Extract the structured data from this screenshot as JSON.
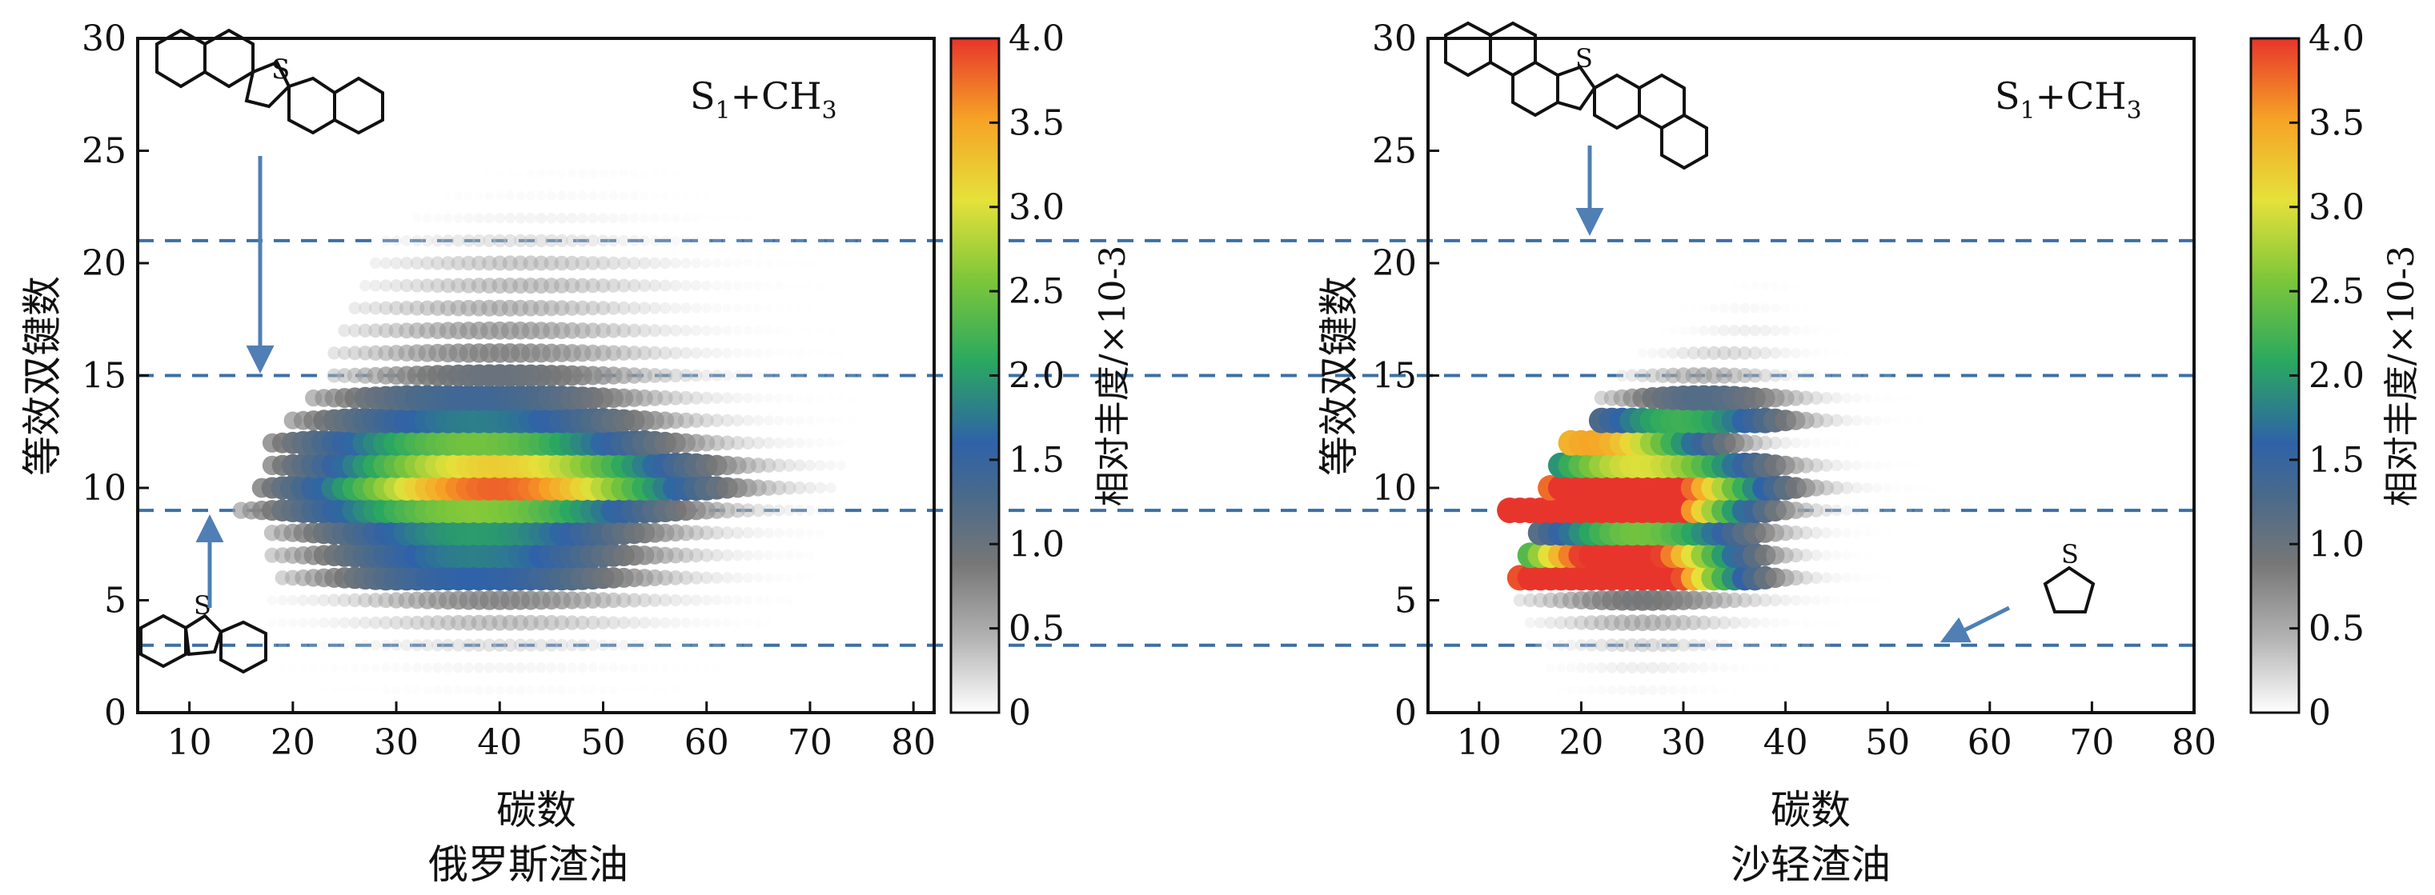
{
  "colors": {
    "guide_line": "#3d6fa3",
    "arrow": "#4f7fb5",
    "axis": "#111111",
    "colorbar_stops": [
      "#ffffff",
      "#b3b3b3",
      "#777777",
      "#4a6a8a",
      "#2f62a8",
      "#2aa860",
      "#7cc63a",
      "#e6e13a",
      "#f6a326",
      "#e8352c"
    ]
  },
  "chart_data": [
    {
      "type": "scatter",
      "encoding": "bubble",
      "caption": "俄罗斯渣油",
      "xlabel": "碳数",
      "ylabel": "等效双键数",
      "xlim": [
        5,
        82
      ],
      "ylim": [
        0,
        30
      ],
      "xticks": [
        10,
        20,
        30,
        40,
        50,
        60,
        70,
        80
      ],
      "yticks": [
        0,
        5,
        10,
        15,
        20,
        25,
        30
      ],
      "annotation": "S1+CH3",
      "colorbar": {
        "label": "相对丰度/×10-3",
        "min": 0,
        "max": 4.0,
        "ticks": [
          "0",
          "0.5",
          "1.0",
          "1.5",
          "2.0",
          "2.5",
          "3.0",
          "3.5",
          "4.0"
        ]
      },
      "reference_lines_y": [
        3,
        9,
        15,
        21
      ],
      "structures": [
        {
          "name": "dinaphthothiophene-icon",
          "atom": "S",
          "points_to_dbe": 15
        },
        {
          "name": "dibenzothiophene-icon",
          "atom": "S",
          "points_to_dbe": 9
        }
      ],
      "series": [
        {
          "dbe": 1,
          "x_range": [
            20,
            60
          ],
          "peak_x": 40,
          "peak_abundance": 0.1
        },
        {
          "dbe": 2,
          "x_range": [
            19,
            62
          ],
          "peak_x": 40,
          "peak_abundance": 0.18
        },
        {
          "dbe": 3,
          "x_range": [
            18,
            64
          ],
          "peak_x": 40,
          "peak_abundance": 0.35
        },
        {
          "dbe": 4,
          "x_range": [
            18,
            66
          ],
          "peak_x": 40,
          "peak_abundance": 0.55
        },
        {
          "dbe": 5,
          "x_range": [
            18,
            68
          ],
          "peak_x": 40,
          "peak_abundance": 0.8
        },
        {
          "dbe": 6,
          "x_range": [
            19,
            70
          ],
          "peak_x": 38,
          "peak_abundance": 1.6
        },
        {
          "dbe": 7,
          "x_range": [
            18,
            70
          ],
          "peak_x": 38,
          "peak_abundance": 1.8
        },
        {
          "dbe": 8,
          "x_range": [
            18,
            71
          ],
          "peak_x": 38,
          "peak_abundance": 2.0
        },
        {
          "dbe": 9,
          "x_range": [
            15,
            72
          ],
          "peak_x": 38,
          "peak_abundance": 2.6
        },
        {
          "dbe": 10,
          "x_range": [
            17,
            72
          ],
          "peak_x": 40,
          "peak_abundance": 3.8
        },
        {
          "dbe": 11,
          "x_range": [
            18,
            73
          ],
          "peak_x": 40,
          "peak_abundance": 3.2
        },
        {
          "dbe": 12,
          "x_range": [
            18,
            73
          ],
          "peak_x": 38,
          "peak_abundance": 2.5
        },
        {
          "dbe": 13,
          "x_range": [
            20,
            74
          ],
          "peak_x": 38,
          "peak_abundance": 1.8
        },
        {
          "dbe": 14,
          "x_range": [
            22,
            75
          ],
          "peak_x": 38,
          "peak_abundance": 1.4
        },
        {
          "dbe": 15,
          "x_range": [
            24,
            76
          ],
          "peak_x": 40,
          "peak_abundance": 1.0
        },
        {
          "dbe": 16,
          "x_range": [
            24,
            76
          ],
          "peak_x": 40,
          "peak_abundance": 0.8
        },
        {
          "dbe": 17,
          "x_range": [
            25,
            76
          ],
          "peak_x": 40,
          "peak_abundance": 0.7
        },
        {
          "dbe": 18,
          "x_range": [
            26,
            76
          ],
          "peak_x": 40,
          "peak_abundance": 0.6
        },
        {
          "dbe": 19,
          "x_range": [
            27,
            76
          ],
          "peak_x": 42,
          "peak_abundance": 0.55
        },
        {
          "dbe": 20,
          "x_range": [
            28,
            76
          ],
          "peak_x": 42,
          "peak_abundance": 0.5
        },
        {
          "dbe": 21,
          "x_range": [
            29,
            75
          ],
          "peak_x": 42,
          "peak_abundance": 0.35
        },
        {
          "dbe": 22,
          "x_range": [
            32,
            72
          ],
          "peak_x": 44,
          "peak_abundance": 0.2
        },
        {
          "dbe": 23,
          "x_range": [
            35,
            68
          ],
          "peak_x": 46,
          "peak_abundance": 0.12
        },
        {
          "dbe": 24,
          "x_range": [
            38,
            62
          ],
          "peak_x": 48,
          "peak_abundance": 0.08
        }
      ]
    },
    {
      "type": "scatter",
      "encoding": "bubble",
      "caption": "沙轻渣油",
      "xlabel": "碳数",
      "ylabel": "等效双键数",
      "xlim": [
        5,
        80
      ],
      "ylim": [
        0,
        30
      ],
      "xticks": [
        10,
        20,
        30,
        40,
        50,
        60,
        70,
        80
      ],
      "yticks": [
        0,
        5,
        10,
        15,
        20,
        25,
        30
      ],
      "annotation": "S1+CH3",
      "colorbar": {
        "label": "相对丰度/×10-3",
        "min": 0,
        "max": 4.0,
        "ticks": [
          "0",
          "0.5",
          "1.0",
          "1.5",
          "2.0",
          "2.5",
          "3.0",
          "3.5",
          "4.0"
        ]
      },
      "reference_lines_y": [
        3,
        9,
        15,
        21
      ],
      "structures": [
        {
          "name": "dinaphthothiophene-icon",
          "atom": "S",
          "points_to_dbe": 21
        },
        {
          "name": "thiophene-icon",
          "atom": "S",
          "points_to_dbe": 3
        }
      ],
      "series": [
        {
          "dbe": 1,
          "x_range": [
            18,
            38
          ],
          "peak_x": 26,
          "peak_abundance": 0.15
        },
        {
          "dbe": 2,
          "x_range": [
            17,
            42
          ],
          "peak_x": 26,
          "peak_abundance": 0.25
        },
        {
          "dbe": 3,
          "x_range": [
            16,
            44
          ],
          "peak_x": 26,
          "peak_abundance": 0.4
        },
        {
          "dbe": 4,
          "x_range": [
            15,
            46
          ],
          "peak_x": 26,
          "peak_abundance": 0.6
        },
        {
          "dbe": 5,
          "x_range": [
            14,
            50
          ],
          "peak_x": 26,
          "peak_abundance": 0.9
        },
        {
          "dbe": 6,
          "x_range": [
            14,
            50
          ],
          "peak_x": 22,
          "peak_abundance": 6.0
        },
        {
          "dbe": 7,
          "x_range": [
            15,
            48
          ],
          "peak_x": 24,
          "peak_abundance": 4.5
        },
        {
          "dbe": 8,
          "x_range": [
            16,
            50
          ],
          "peak_x": 26,
          "peak_abundance": 2.5
        },
        {
          "dbe": 9,
          "x_range": [
            13,
            56
          ],
          "peak_x": 18,
          "peak_abundance": 8.0
        },
        {
          "dbe": 10,
          "x_range": [
            17,
            56
          ],
          "peak_x": 24,
          "peak_abundance": 5.0
        },
        {
          "dbe": 11,
          "x_range": [
            18,
            54
          ],
          "peak_x": 26,
          "peak_abundance": 3.0
        },
        {
          "dbe": 12,
          "x_range": [
            19,
            54
          ],
          "peak_x": 21,
          "peak_abundance": 3.5
        },
        {
          "dbe": 13,
          "x_range": [
            22,
            54
          ],
          "peak_x": 30,
          "peak_abundance": 2.2
        },
        {
          "dbe": 14,
          "x_range": [
            22,
            52
          ],
          "peak_x": 32,
          "peak_abundance": 1.2
        },
        {
          "dbe": 15,
          "x_range": [
            24,
            50
          ],
          "peak_x": 32,
          "peak_abundance": 0.6
        },
        {
          "dbe": 16,
          "x_range": [
            26,
            48
          ],
          "peak_x": 34,
          "peak_abundance": 0.4
        },
        {
          "dbe": 17,
          "x_range": [
            28,
            46
          ],
          "peak_x": 36,
          "peak_abundance": 0.25
        },
        {
          "dbe": 18,
          "x_range": [
            30,
            44
          ],
          "peak_x": 36,
          "peak_abundance": 0.15
        },
        {
          "dbe": 19,
          "x_range": [
            32,
            42
          ],
          "peak_x": 38,
          "peak_abundance": 0.08
        }
      ]
    }
  ]
}
